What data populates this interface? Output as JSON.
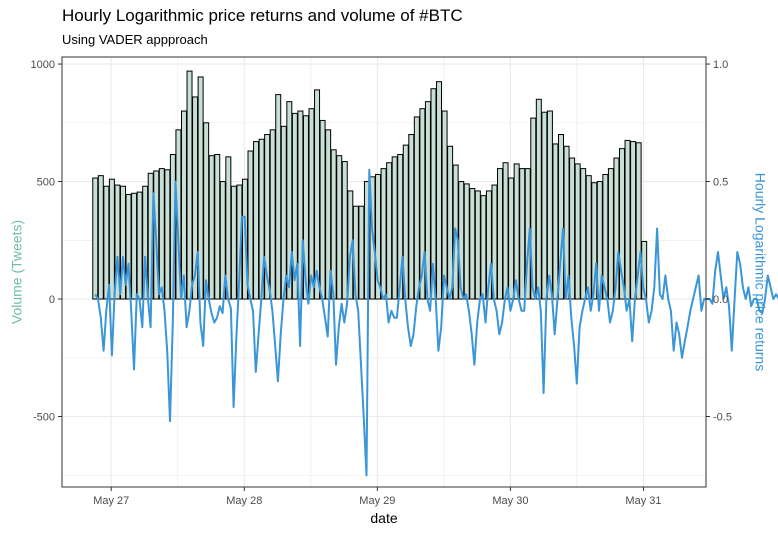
{
  "chart_data": {
    "type": "bar",
    "title": "Hourly Logarithmic price returns and volume of #BTC",
    "subtitle": "Using VADER appproach",
    "xlabel": "date",
    "ylabel_left": "Volume (Tweets)",
    "ylabel_right": "Hourly Logarithmic price returns",
    "xlim_days": [
      0,
      4.84
    ],
    "ylim_left": [
      -800,
      1030
    ],
    "yticks_left": [
      -500,
      0,
      500,
      1000
    ],
    "yticks_left_labels": [
      "-500",
      "0",
      "500",
      "1000"
    ],
    "yticks_right_labels": [
      "-0.5",
      "0.0",
      "0.5",
      "1.0"
    ],
    "right_axis_scale": 0.001,
    "xticks": [
      0.37,
      1.37,
      2.37,
      3.37,
      4.37
    ],
    "xtick_labels": [
      "May 27",
      "May 28",
      "May 29",
      "May 30",
      "May 31"
    ],
    "grid": true,
    "colors": {
      "bar_fill": "#c7dfd4",
      "bar_stroke": "#000000",
      "line": "#3a96d8",
      "left_axis_title": "#6fbfa0",
      "right_axis_title": "#3a96d8"
    },
    "bar_start_day": 0.25,
    "bar_step_day": 0.04167,
    "series": [
      {
        "kind": "bar",
        "values": [
          515,
          525,
          480,
          510,
          485,
          480,
          445,
          450,
          455,
          480,
          535,
          545,
          555,
          550,
          615,
          720,
          800,
          970,
          860,
          945,
          750,
          610,
          615,
          500,
          605,
          480,
          485,
          510,
          630,
          670,
          680,
          700,
          720,
          870,
          735,
          840,
          790,
          800,
          780,
          810,
          890,
          760,
          720,
          635,
          610,
          585,
          460,
          395,
          395,
          500,
          520,
          530,
          555,
          580,
          605,
          615,
          655,
          700,
          775,
          810,
          840,
          895,
          925,
          800,
          650,
          570,
          500,
          490,
          470,
          460,
          440,
          460,
          485,
          555,
          580,
          515,
          575,
          555,
          555,
          770,
          850,
          795,
          800,
          660,
          700,
          650,
          600,
          575,
          555,
          525,
          495,
          500,
          530,
          555,
          600,
          640,
          675,
          670,
          665,
          245
        ]
      },
      {
        "kind": "line",
        "x_start_day": 0.25,
        "x_step_day": 0.0208,
        "values": [
          0.02,
          0.0,
          -0.08,
          -0.22,
          -0.05,
          0.06,
          -0.24,
          0.02,
          0.18,
          0.02,
          0.18,
          0.06,
          0.15,
          -0.05,
          -0.3,
          0.02,
          0.0,
          -0.12,
          0.18,
          0.01,
          -0.12,
          0.45,
          0.25,
          0.02,
          0.05,
          -0.05,
          -0.22,
          -0.52,
          -0.1,
          0.5,
          0.25,
          0.0,
          0.1,
          -0.12,
          -0.05,
          0.06,
          0.1,
          0.2,
          -0.1,
          -0.2,
          0.08,
          0.0,
          -0.06,
          -0.1,
          -0.08,
          -0.03,
          -0.06,
          0.1,
          0.0,
          -0.04,
          -0.46,
          -0.16,
          0.08,
          0.35,
          0.35,
          0.06,
          0.0,
          -0.05,
          -0.31,
          -0.15,
          0.0,
          0.18,
          0.1,
          0.04,
          -0.05,
          -0.2,
          -0.35,
          -0.15,
          0.0,
          0.1,
          0.05,
          0.2,
          0.08,
          0.15,
          -0.2,
          0.25,
          0.08,
          -0.02,
          0.1,
          0.05,
          0.12,
          0.05,
          0.0,
          -0.08,
          -0.16,
          0.12,
          0.02,
          -0.28,
          -0.12,
          -0.02,
          -0.1,
          -0.02,
          0.18,
          0.25,
          0.02,
          -0.05,
          -0.28,
          -0.5,
          -0.75,
          0.55,
          0.3,
          0.2,
          0.08,
          0.05,
          0.0,
          0.02,
          -0.1,
          -0.05,
          -0.08,
          -0.08,
          0.05,
          0.18,
          0.0,
          -0.12,
          -0.2,
          -0.15,
          -0.03,
          0.05,
          0.1,
          0.2,
          0.0,
          -0.05,
          0.15,
          0.0,
          -0.22,
          -0.12,
          0.1,
          0.05,
          0.0,
          0.05,
          0.3,
          0.25,
          0.05,
          0.0,
          0.02,
          -0.05,
          -0.15,
          -0.28,
          -0.1,
          0.0,
          0.02,
          -0.1,
          0.05,
          0.15,
          0.0,
          -0.05,
          -0.15,
          -0.1,
          0.0,
          0.05,
          -0.05,
          0.0,
          0.08,
          0.0,
          -0.05,
          -0.05,
          0.15,
          0.3,
          0.05,
          0.0,
          0.05,
          -0.05,
          -0.4,
          0.0,
          0.1,
          0.02,
          -0.15,
          0.0,
          0.15,
          0.3,
          0.0,
          0.1,
          -0.08,
          -0.2,
          -0.36,
          -0.12,
          -0.05,
          0.0,
          0.05,
          -0.05,
          0.02,
          0.15,
          -0.05,
          0.1,
          0.05,
          0.0,
          -0.1,
          -0.05,
          0.05,
          0.2,
          0.12,
          0.05,
          -0.05,
          0.0,
          -0.18,
          0.0,
          0.1,
          0.2,
          0.05,
          0.0,
          -0.1,
          -0.05,
          0.05,
          0.3,
          0.02,
          0.0,
          0.1,
          0.0,
          -0.05,
          -0.22,
          -0.1,
          -0.15,
          -0.25,
          -0.18,
          -0.12,
          -0.05,
          0.0,
          0.05,
          0.1,
          -0.05,
          0.0,
          0.0,
          0.0,
          -0.02,
          0.12,
          0.2,
          0.1,
          0.0,
          0.05,
          -0.03,
          -0.22,
          0.0,
          0.2,
          0.15,
          0.05,
          0.0,
          0.05,
          -0.03,
          0.0,
          0.0,
          -0.05,
          -0.06,
          0.0,
          0.1,
          0.05,
          0.0,
          0.02,
          0.0,
          -0.05,
          0.0,
          0.05,
          0.0,
          -0.08,
          0.0,
          0.05,
          0.2,
          0.05,
          0.0,
          0.0,
          0.02,
          0.0
        ]
      }
    ]
  }
}
